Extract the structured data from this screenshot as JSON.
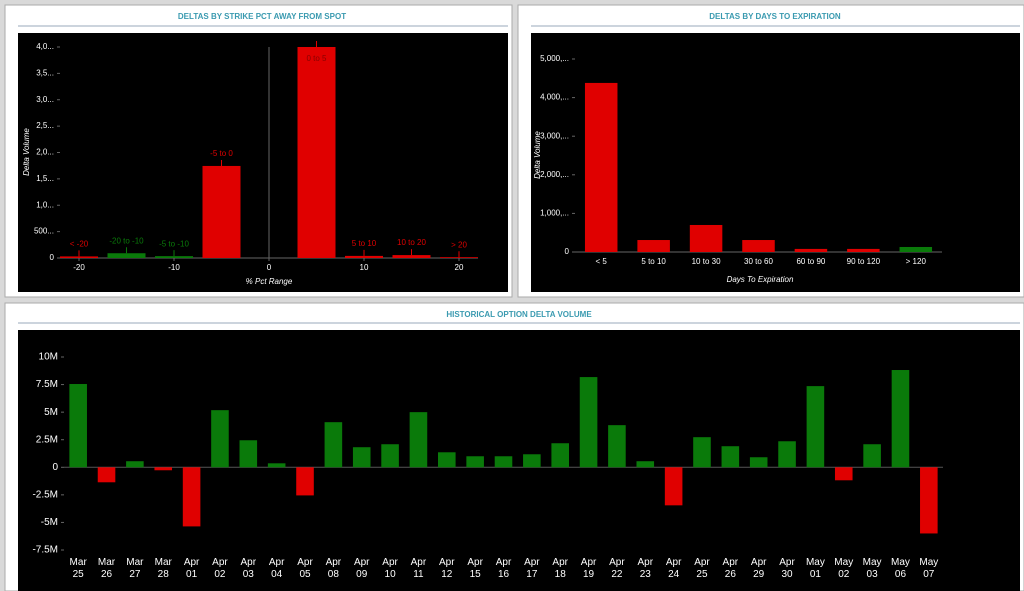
{
  "chart_data": [
    {
      "type": "bar",
      "title": "DELTAS BY STRIKE PCT AWAY FROM SPOT",
      "x_label": "% Pct Range",
      "y_label": "Delta Volume",
      "x": [
        -20,
        -15,
        -10,
        -5,
        5,
        10,
        15,
        20
      ],
      "bar_labels": [
        "< -20",
        "-20 to -10",
        "-5 to -10",
        "-5 to 0",
        "0 to 5",
        "5 to 10",
        "10 to 20",
        "> 20"
      ],
      "values": [
        30000,
        90000,
        35000,
        1745000,
        4000000,
        40000,
        55000,
        15000
      ],
      "colors": [
        "#e00000",
        "#0a7a0a",
        "#0a7a0a",
        "#e00000",
        "#e00000",
        "#e00000",
        "#e00000",
        "#e00000"
      ],
      "xlim": [
        -22,
        22
      ],
      "xticks": [
        -20,
        -10,
        0,
        10,
        20
      ],
      "ylim": [
        0,
        4000000
      ],
      "yticks": [
        0,
        {
          "value": 500000,
          "label": "500..."
        },
        {
          "value": 1000000,
          "label": "1,0..."
        },
        {
          "value": 1500000,
          "label": "1,5..."
        },
        {
          "value": 2000000,
          "label": "2,0..."
        },
        {
          "value": 2500000,
          "label": "2,5..."
        },
        {
          "value": 3000000,
          "label": "3,0..."
        },
        {
          "value": 3500000,
          "label": "3,5..."
        },
        {
          "value": 4000000,
          "label": "4,0..."
        }
      ]
    },
    {
      "type": "bar",
      "title": "DELTAS BY DAYS TO EXPIRATION",
      "x_label": "Days To Expiration",
      "y_label": "Delta Volume",
      "categories": [
        "< 5",
        "5 to 10",
        "10 to 30",
        "30 to 60",
        "60 to 90",
        "90 to 120",
        "> 120"
      ],
      "values": [
        4380000,
        310000,
        700000,
        310000,
        80000,
        80000,
        130000
      ],
      "colors": [
        "#e00000",
        "#e00000",
        "#e00000",
        "#e00000",
        "#e00000",
        "#e00000",
        "#0a7a0a"
      ],
      "ylim": [
        0,
        5000000
      ],
      "yticks": [
        0,
        {
          "value": 1000000,
          "label": "1,000,..."
        },
        {
          "value": 2000000,
          "label": "2,000,..."
        },
        {
          "value": 3000000,
          "label": "3,000,..."
        },
        {
          "value": 4000000,
          "label": "4,000,..."
        },
        {
          "value": 5000000,
          "label": "5,000,..."
        }
      ]
    },
    {
      "type": "bar",
      "title": "HISTORICAL OPTION DELTA VOLUME",
      "categories": [
        "Mar 25",
        "Mar 26",
        "Mar 27",
        "Mar 28",
        "Apr 01",
        "Apr 02",
        "Apr 03",
        "Apr 04",
        "Apr 05",
        "Apr 08",
        "Apr 09",
        "Apr 10",
        "Apr 11",
        "Apr 12",
        "Apr 15",
        "Apr 16",
        "Apr 17",
        "Apr 18",
        "Apr 19",
        "Apr 22",
        "Apr 23",
        "Apr 24",
        "Apr 25",
        "Apr 26",
        "Apr 29",
        "Apr 30",
        "May 01",
        "May 02",
        "May 03",
        "May 06",
        "May 07"
      ],
      "values": [
        7550000,
        -1360000,
        550000,
        -270000,
        -5360000,
        5180000,
        2450000,
        360000,
        -2550000,
        4090000,
        1820000,
        2090000,
        5000000,
        1360000,
        1000000,
        1000000,
        1180000,
        2180000,
        8180000,
        3820000,
        550000,
        -3450000,
        2730000,
        1910000,
        910000,
        2360000,
        7360000,
        -1180000,
        2090000,
        8820000,
        -6000000
      ],
      "positive_color": "#0a7a0a",
      "negative_color": "#e00000",
      "ylim": [
        -7500000,
        10000000
      ],
      "yticks": [
        {
          "value": -7500000,
          "label": "-7.5M"
        },
        {
          "value": -5000000,
          "label": "-5M"
        },
        {
          "value": -2500000,
          "label": "-2.5M"
        },
        0,
        {
          "value": 2500000,
          "label": "2.5M"
        },
        {
          "value": 5000000,
          "label": "5M"
        },
        {
          "value": 7500000,
          "label": "7.5M"
        },
        {
          "value": 10000000,
          "label": "10M"
        }
      ]
    }
  ]
}
